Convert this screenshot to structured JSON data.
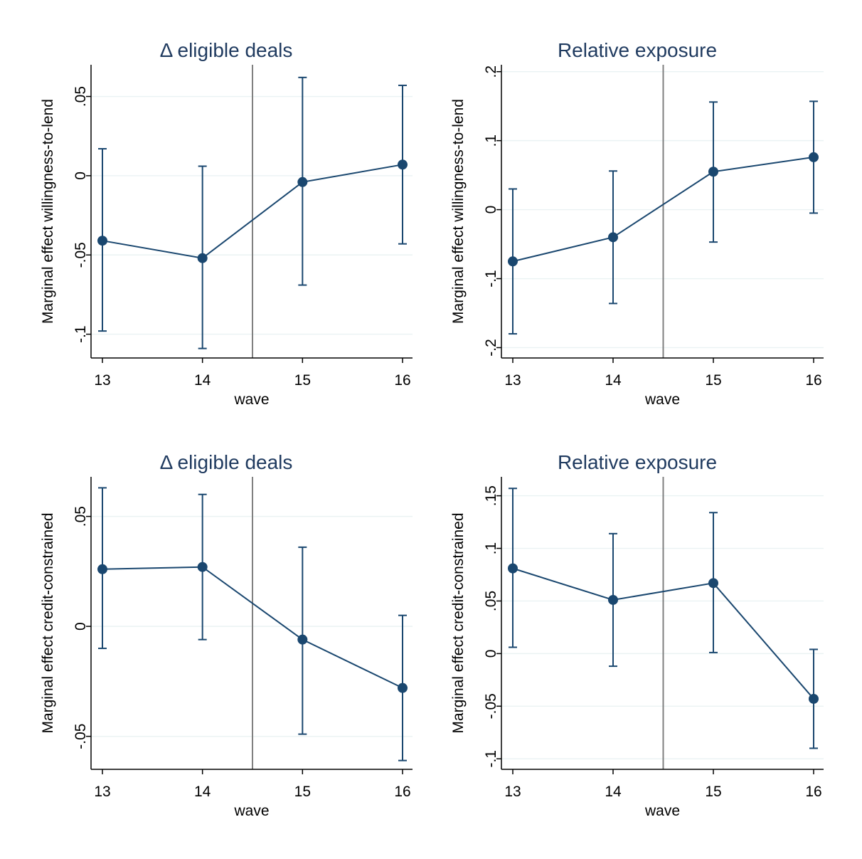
{
  "colors": {
    "series": "#1a476f",
    "grid": "#eaf2f3",
    "refline": "#808080",
    "title": "#1f3a5f",
    "axis": "#000000"
  },
  "chart_data": [
    {
      "type": "line",
      "title": "Δ eligible deals",
      "xlabel": "wave",
      "ylabel": "Marginal effect willingness-to-lend",
      "x": [
        13,
        14,
        15,
        16
      ],
      "xlim": [
        13,
        16
      ],
      "ylim": [
        -0.115,
        0.07
      ],
      "yticks": [
        -0.1,
        -0.05,
        0,
        0.05
      ],
      "ytick_labels": [
        "-.1",
        "-.05",
        "0",
        ".05"
      ],
      "xtick_labels": [
        "13",
        "14",
        "15",
        "16"
      ],
      "reference_line_x": 14.5,
      "grid": true,
      "error_bars": true,
      "series": [
        {
          "values": [
            -0.041,
            -0.052,
            -0.004,
            0.007
          ],
          "lower": [
            -0.098,
            -0.109,
            -0.069,
            -0.043
          ],
          "upper": [
            0.017,
            0.006,
            0.062,
            0.057
          ]
        }
      ]
    },
    {
      "type": "line",
      "title": "Relative exposure",
      "xlabel": "wave",
      "ylabel": "Marginal effect willingness-to-lend",
      "x": [
        13,
        14,
        15,
        16
      ],
      "xlim": [
        13,
        16
      ],
      "ylim": [
        -0.215,
        0.21
      ],
      "yticks": [
        -0.2,
        -0.1,
        0,
        0.1,
        0.2
      ],
      "ytick_labels": [
        "-.2",
        "-.1",
        "0",
        ".1",
        ".2"
      ],
      "xtick_labels": [
        "13",
        "14",
        "15",
        "16"
      ],
      "reference_line_x": 14.5,
      "grid": true,
      "error_bars": true,
      "series": [
        {
          "values": [
            -0.075,
            -0.04,
            0.055,
            0.076
          ],
          "lower": [
            -0.18,
            -0.136,
            -0.047,
            -0.005
          ],
          "upper": [
            0.03,
            0.056,
            0.156,
            0.157
          ]
        }
      ]
    },
    {
      "type": "line",
      "title": "Δ eligible deals",
      "xlabel": "wave",
      "ylabel": "Marginal effect credit-constrained",
      "x": [
        13,
        14,
        15,
        16
      ],
      "xlim": [
        13,
        16
      ],
      "ylim": [
        -0.065,
        0.068
      ],
      "yticks": [
        -0.05,
        0,
        0.05
      ],
      "ytick_labels": [
        "-.05",
        "0",
        ".05"
      ],
      "xtick_labels": [
        "13",
        "14",
        "15",
        "16"
      ],
      "reference_line_x": 14.5,
      "grid": true,
      "error_bars": true,
      "series": [
        {
          "values": [
            0.026,
            0.027,
            -0.006,
            -0.028
          ],
          "lower": [
            -0.01,
            -0.006,
            -0.049,
            -0.061
          ],
          "upper": [
            0.063,
            0.06,
            0.036,
            0.005
          ]
        }
      ]
    },
    {
      "type": "line",
      "title": "Relative exposure",
      "xlabel": "wave",
      "ylabel": "Marginal effect credit-constrained",
      "x": [
        13,
        14,
        15,
        16
      ],
      "xlim": [
        13,
        16
      ],
      "ylim": [
        -0.11,
        0.168
      ],
      "yticks": [
        -0.1,
        -0.05,
        0,
        0.05,
        0.1,
        0.15
      ],
      "ytick_labels": [
        "-.1",
        "-.05",
        "0",
        ".05",
        ".1",
        ".15"
      ],
      "xtick_labels": [
        "13",
        "14",
        "15",
        "16"
      ],
      "reference_line_x": 14.5,
      "grid": true,
      "error_bars": true,
      "series": [
        {
          "values": [
            0.081,
            0.051,
            0.067,
            -0.043
          ],
          "lower": [
            0.006,
            -0.012,
            0.001,
            -0.09
          ],
          "upper": [
            0.157,
            0.114,
            0.134,
            0.004
          ]
        }
      ]
    }
  ]
}
